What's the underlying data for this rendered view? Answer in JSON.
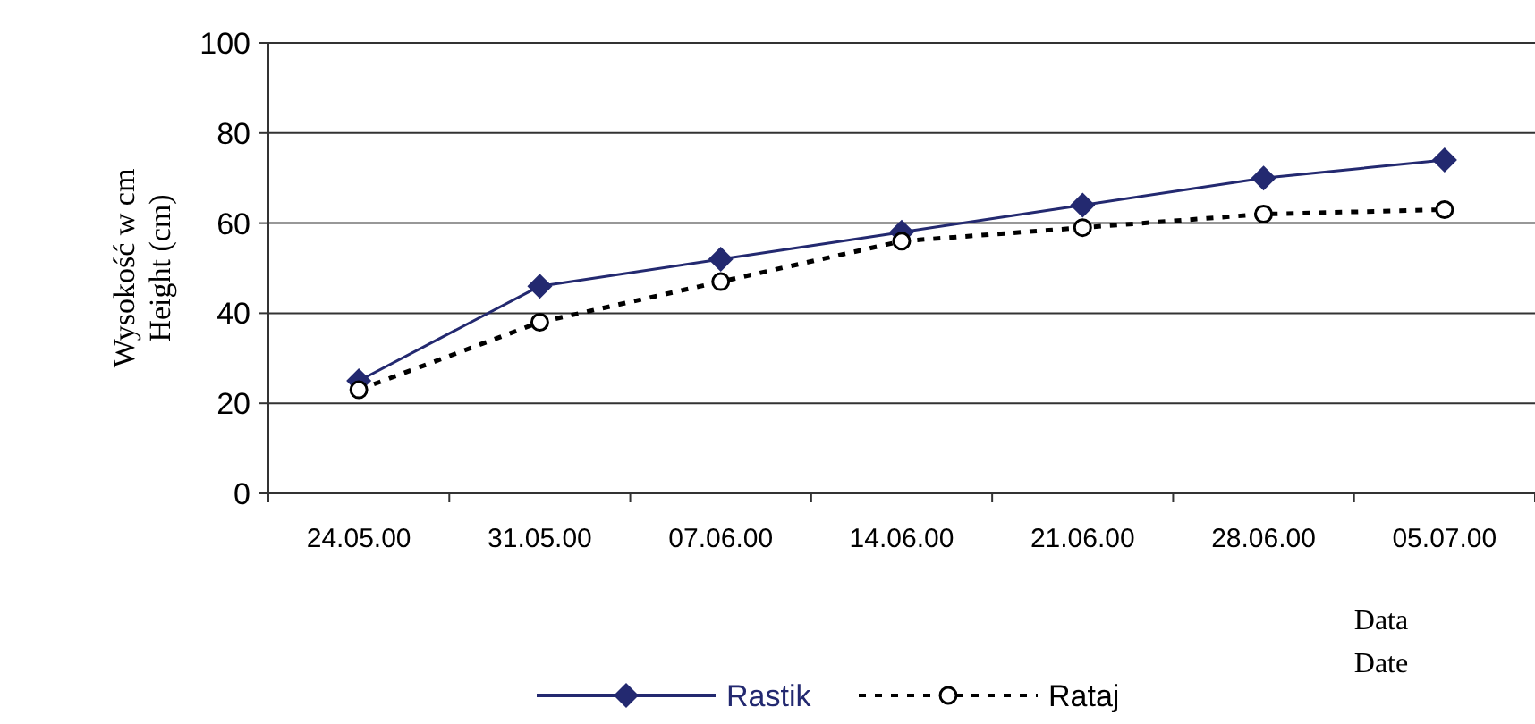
{
  "chart_data": {
    "type": "line",
    "ylabel": "Wysokość w cm\nHeight (cm)",
    "xlabel": "Data\nDate",
    "categories": [
      "24.05.00",
      "31.05.00",
      "07.06.00",
      "14.06.00",
      "21.06.00",
      "28.06.00",
      "05.07.00"
    ],
    "series": [
      {
        "name": "Rastik",
        "color": "#232970",
        "marker": "diamond",
        "line_style": "solid",
        "values": [
          25,
          46,
          52,
          58,
          64,
          70,
          74
        ]
      },
      {
        "name": "Rataj",
        "color": "#000000",
        "marker": "circle",
        "line_style": "dashed",
        "values": [
          23,
          38,
          47,
          56,
          59,
          62,
          63
        ]
      }
    ],
    "ylim": [
      0,
      100
    ],
    "yticks": [
      0,
      20,
      40,
      60,
      80,
      100
    ],
    "grid": "y",
    "legend": "bottom"
  }
}
